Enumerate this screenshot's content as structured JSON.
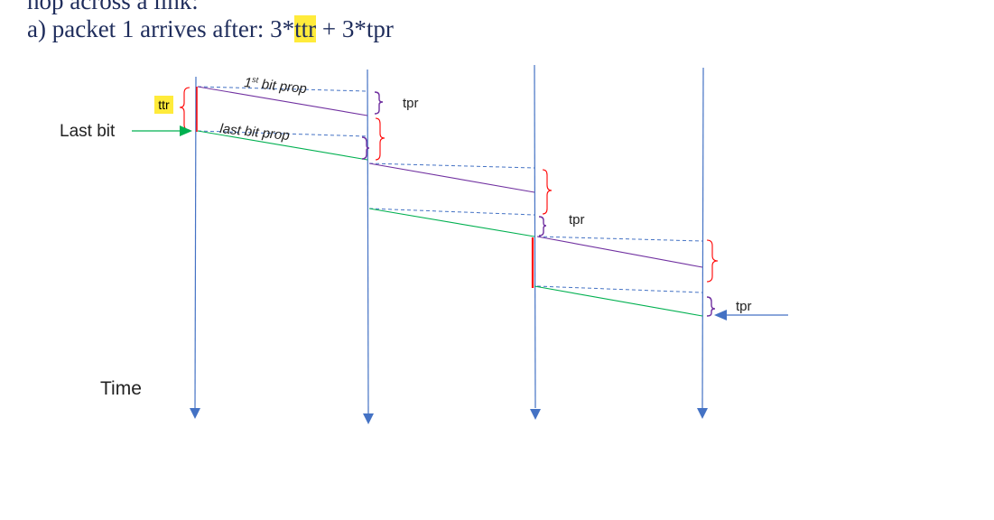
{
  "heading": {
    "line1": "hop across a link:",
    "line2_prefix": "a) packet 1 arrives after: 3*",
    "line2_highlight": "ttr",
    "line2_suffix": " + 3*tpr"
  },
  "labels": {
    "ttr": "ttr",
    "last_bit": "Last bit",
    "first_bit_ordinal": "1",
    "first_bit_sup": "st",
    "first_bit_rest": " bit prop",
    "last_bit_prop": "last bit prop",
    "tpr_top": "tpr",
    "tpr_middle": "tpr",
    "tpr_bottom": "tpr",
    "time": "Time"
  },
  "colors": {
    "timeline": "#4472c4",
    "first_bit": "#7030a0",
    "last_bit": "#00b050",
    "transmission_brace": "#ff0000",
    "propagation_brace": "#7030a0",
    "guide_dash": "#4472c4",
    "last_bit_arrow": "#00b050",
    "tpr_arrow": "#4472c4",
    "highlight": "#ffeb3b",
    "heading_text": "#1f2d5c"
  }
}
